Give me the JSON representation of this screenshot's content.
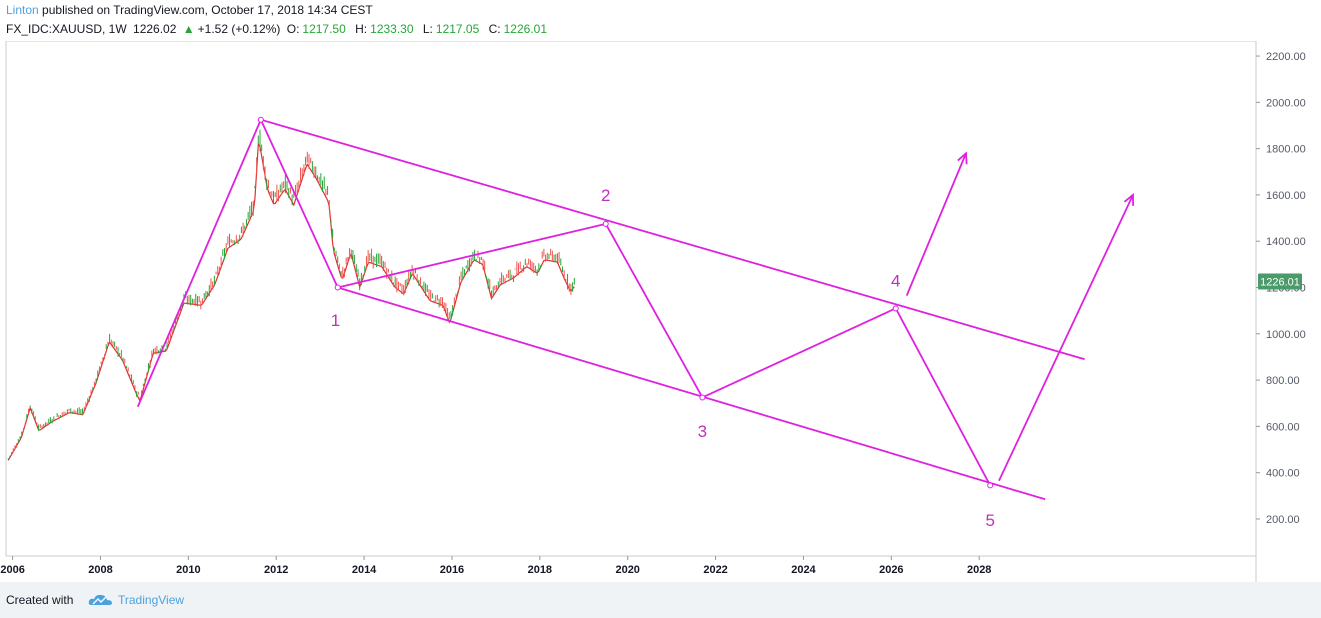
{
  "header": {
    "author": "Linton",
    "published_text": "published on TradingView.com, October 17, 2018 14:34 CEST",
    "symbol": "FX_IDC:XAUUSD, 1W",
    "last": "1226.02",
    "change": "+1.52 (+0.12%)",
    "open_label": "O:",
    "open": "1217.50",
    "high_label": "H:",
    "high": "1233.30",
    "low_label": "L:",
    "low": "1217.05",
    "close_label": "C:",
    "close": "1226.01"
  },
  "footer": {
    "created_with": "Created with",
    "brand": "TradingView"
  },
  "colors": {
    "accent": "#e020e0",
    "up": "#26a637",
    "down": "#ef5350",
    "ma": "#e03030",
    "price_badge": "#4a9a6a"
  },
  "chart_data": {
    "type": "line",
    "series": [
      {
        "values": [
          [
            2005.9,
            460
          ],
          [
            2006.2,
            560
          ],
          [
            2006.4,
            690
          ],
          [
            2006.6,
            590
          ],
          [
            2006.9,
            630
          ],
          [
            2007.3,
            670
          ],
          [
            2007.6,
            660
          ],
          [
            2007.9,
            800
          ],
          [
            2008.2,
            980
          ],
          [
            2008.5,
            900
          ],
          [
            2008.8,
            760
          ],
          [
            2008.9,
            720
          ],
          [
            2009.2,
            930
          ],
          [
            2009.5,
            940
          ],
          [
            2009.9,
            1150
          ],
          [
            2010.3,
            1140
          ],
          [
            2010.6,
            1230
          ],
          [
            2010.9,
            1390
          ],
          [
            2011.2,
            1430
          ],
          [
            2011.5,
            1560
          ],
          [
            2011.6,
            1870
          ],
          [
            2011.8,
            1650
          ],
          [
            2011.95,
            1580
          ],
          [
            2012.2,
            1650
          ],
          [
            2012.4,
            1580
          ],
          [
            2012.7,
            1760
          ],
          [
            2012.9,
            1700
          ],
          [
            2013.2,
            1590
          ],
          [
            2013.3,
            1380
          ],
          [
            2013.5,
            1250
          ],
          [
            2013.7,
            1370
          ],
          [
            2013.9,
            1220
          ],
          [
            2014.1,
            1330
          ],
          [
            2014.4,
            1310
          ],
          [
            2014.7,
            1220
          ],
          [
            2014.9,
            1190
          ],
          [
            2015.1,
            1280
          ],
          [
            2015.5,
            1160
          ],
          [
            2015.8,
            1140
          ],
          [
            2015.95,
            1060
          ],
          [
            2016.2,
            1240
          ],
          [
            2016.5,
            1340
          ],
          [
            2016.7,
            1320
          ],
          [
            2016.9,
            1170
          ],
          [
            2017.1,
            1230
          ],
          [
            2017.4,
            1260
          ],
          [
            2017.7,
            1310
          ],
          [
            2017.95,
            1280
          ],
          [
            2018.1,
            1340
          ],
          [
            2018.4,
            1330
          ],
          [
            2018.55,
            1260
          ],
          [
            2018.7,
            1200
          ],
          [
            2018.8,
            1226
          ]
        ]
      }
    ],
    "xlim": [
      2005.85,
      2034.3
    ],
    "ylim": [
      40,
      2265
    ],
    "xticks": [
      "2006",
      "2008",
      "2010",
      "2012",
      "2014",
      "2016",
      "2018",
      "2020",
      "2022",
      "2024",
      "2026",
      "2028"
    ],
    "yticks": [
      "200.00",
      "400.00",
      "600.00",
      "800.00",
      "1000.00",
      "1200.00",
      "1400.00",
      "1600.00",
      "1800.00",
      "2000.00",
      "2200.00"
    ],
    "last_price": "1226.01",
    "wave_labels": [
      "1",
      "2",
      "3",
      "4",
      "5"
    ]
  }
}
